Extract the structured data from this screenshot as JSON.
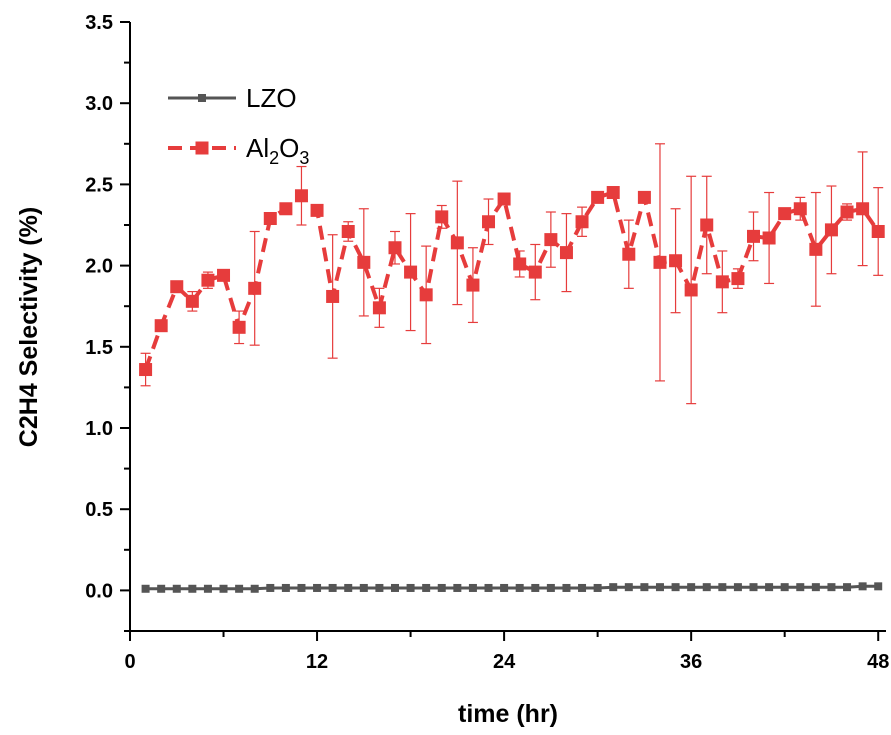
{
  "chart_data": {
    "type": "line",
    "xlabel": "time (hr)",
    "ylabel": "C2H4  Selectivity (%)",
    "xlim": [
      0,
      48.5
    ],
    "ylim": [
      -0.25,
      3.5
    ],
    "x_ticks": [
      0,
      12,
      24,
      36,
      48
    ],
    "x_tick_labels": [
      "0",
      "12",
      "24",
      "36",
      "48"
    ],
    "y_ticks": [
      0,
      0.5,
      1,
      1.5,
      2,
      2.5,
      3,
      3.5
    ],
    "y_tick_labels": [
      "0.0",
      "0.5",
      "1.0",
      "1.5",
      "2.0",
      "2.5",
      "3.0",
      "3.5"
    ],
    "grid": false,
    "legend_position": "top-left",
    "legend": [
      {
        "main": "LZO",
        "sub1": "",
        "mid": "",
        "sub2": ""
      },
      {
        "main": "Al",
        "sub1": "2",
        "mid": "O",
        "sub2": "3"
      }
    ],
    "series": [
      {
        "name": "LZO",
        "color": "#555555",
        "line_style": "solid",
        "marker": "square-small",
        "x": [
          1,
          2,
          3,
          4,
          5,
          6,
          7,
          8,
          9,
          10,
          11,
          12,
          13,
          14,
          15,
          16,
          17,
          18,
          19,
          20,
          21,
          22,
          23,
          24,
          25,
          26,
          27,
          28,
          29,
          30,
          31,
          32,
          33,
          34,
          35,
          36,
          37,
          38,
          39,
          40,
          41,
          42,
          43,
          44,
          45,
          46,
          47,
          48
        ],
        "y": [
          0.01,
          0.01,
          0.01,
          0.01,
          0.01,
          0.01,
          0.01,
          0.01,
          0.015,
          0.015,
          0.015,
          0.015,
          0.015,
          0.015,
          0.015,
          0.015,
          0.015,
          0.015,
          0.015,
          0.015,
          0.015,
          0.015,
          0.015,
          0.015,
          0.015,
          0.015,
          0.015,
          0.015,
          0.015,
          0.015,
          0.02,
          0.02,
          0.02,
          0.02,
          0.02,
          0.02,
          0.02,
          0.02,
          0.02,
          0.02,
          0.02,
          0.02,
          0.02,
          0.02,
          0.02,
          0.02,
          0.025,
          0.025
        ]
      },
      {
        "name": "Al2O3",
        "color": "#e63c3c",
        "line_style": "dashed",
        "marker": "square",
        "x": [
          1,
          2,
          3,
          4,
          5,
          6,
          7,
          8,
          9,
          10,
          11,
          12,
          13,
          14,
          15,
          16,
          17,
          18,
          19,
          20,
          21,
          22,
          23,
          24,
          25,
          26,
          27,
          28,
          29,
          30,
          31,
          32,
          33,
          34,
          35,
          36,
          37,
          38,
          39,
          40,
          41,
          42,
          43,
          44,
          45,
          46,
          47,
          48
        ],
        "y": [
          1.36,
          1.63,
          1.87,
          1.78,
          1.91,
          1.94,
          1.62,
          1.86,
          2.29,
          2.35,
          2.43,
          2.34,
          1.81,
          2.21,
          2.02,
          1.74,
          2.11,
          1.96,
          1.82,
          2.3,
          2.14,
          1.88,
          2.27,
          2.41,
          2.01,
          1.96,
          2.16,
          2.08,
          2.27,
          2.42,
          2.45,
          2.07,
          2.42,
          2.02,
          2.03,
          1.85,
          2.25,
          1.9,
          1.92,
          2.18,
          2.17,
          2.32,
          2.35,
          2.1,
          2.22,
          2.33,
          2.35,
          2.21
        ],
        "error": [
          0.1,
          0.03,
          0.03,
          0.06,
          0.05,
          0.03,
          0.1,
          0.35,
          0.03,
          0.03,
          0.18,
          0.03,
          0.38,
          0.06,
          0.33,
          0.12,
          0.1,
          0.36,
          0.3,
          0.07,
          0.38,
          0.23,
          0.14,
          0.03,
          0.08,
          0.17,
          0.17,
          0.24,
          0.09,
          0.03,
          0.03,
          0.21,
          0.03,
          0.73,
          0.32,
          0.7,
          0.3,
          0.19,
          0.06,
          0.15,
          0.28,
          0.03,
          0.07,
          0.35,
          0.27,
          0.05,
          0.35,
          0.27
        ]
      }
    ]
  }
}
